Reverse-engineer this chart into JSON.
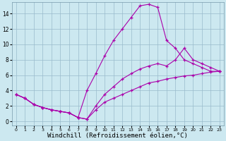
{
  "background_color": "#cce8f0",
  "line_color": "#aa00aa",
  "grid_color": "#99bbcc",
  "xlabel": "Windchill (Refroidissement éolien,°C)",
  "xlabel_fontsize": 6.5,
  "ylim": [
    -0.5,
    15.5
  ],
  "xlim": [
    -0.5,
    23.5
  ],
  "yticks": [
    0,
    2,
    4,
    6,
    8,
    10,
    12,
    14
  ],
  "xticks": [
    0,
    1,
    2,
    3,
    4,
    5,
    6,
    7,
    8,
    9,
    10,
    11,
    12,
    13,
    14,
    15,
    16,
    17,
    18,
    19,
    20,
    21,
    22,
    23
  ],
  "series": [
    {
      "x": [
        0,
        1,
        2,
        3,
        4,
        5,
        6,
        7,
        8,
        9,
        10,
        11,
        12,
        13,
        14,
        15,
        16,
        17,
        18,
        19,
        20,
        21,
        22,
        23
      ],
      "y": [
        3.5,
        3.0,
        2.2,
        1.8,
        1.5,
        1.3,
        1.1,
        0.5,
        0.3,
        1.5,
        2.5,
        3.0,
        3.5,
        4.0,
        4.5,
        5.0,
        5.2,
        5.5,
        5.7,
        5.9,
        6.0,
        6.2,
        6.4,
        6.5
      ]
    },
    {
      "x": [
        0,
        1,
        2,
        3,
        4,
        5,
        6,
        7,
        8,
        9,
        10,
        11,
        12,
        13,
        14,
        15,
        16,
        17,
        18,
        19,
        20,
        21,
        22,
        23
      ],
      "y": [
        3.5,
        3.0,
        2.2,
        1.8,
        1.5,
        1.3,
        1.1,
        0.5,
        0.3,
        2.0,
        3.5,
        4.5,
        5.5,
        6.2,
        6.8,
        7.2,
        7.5,
        7.2,
        8.0,
        9.5,
        8.0,
        7.5,
        7.0,
        6.5
      ]
    },
    {
      "x": [
        0,
        1,
        2,
        3,
        4,
        5,
        6,
        7,
        8,
        9,
        10,
        11,
        12,
        13,
        14,
        15,
        16,
        17,
        18,
        19,
        20,
        21,
        22,
        23
      ],
      "y": [
        3.5,
        3.0,
        2.2,
        1.8,
        1.5,
        1.3,
        1.1,
        0.5,
        4.0,
        6.2,
        8.5,
        10.5,
        12.0,
        13.5,
        15.0,
        15.2,
        14.8,
        10.5,
        9.5,
        8.0,
        7.5,
        7.0,
        6.5,
        6.5
      ]
    }
  ]
}
